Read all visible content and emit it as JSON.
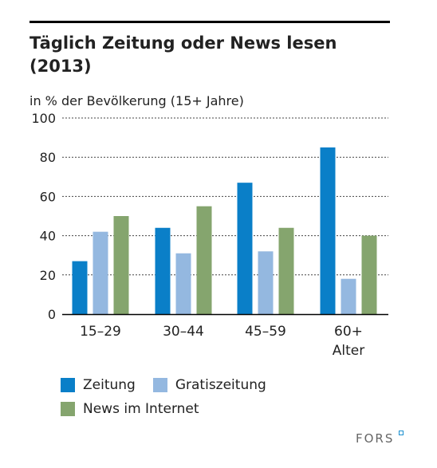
{
  "title": "Täglich Zeitung oder News lesen (2013)",
  "subtitle": "in % der Bevölkerung (15+ Jahre)",
  "logo_text": "FORS",
  "colors": {
    "Zeitung": "#0a7fc8",
    "Gratiszeitung": "#94b8e0",
    "News im Internet": "#85a56e",
    "grid": "#444444",
    "axis": "#000000"
  },
  "chart_data": {
    "type": "bar",
    "title": "Täglich Zeitung oder News lesen (2013)",
    "subtitle": "in % der Bevölkerung (15+ Jahre)",
    "categories": [
      "15–29",
      "30–44",
      "45–59",
      "60+\nAlter"
    ],
    "yticks": [
      "0",
      "20",
      "40",
      "60",
      "80",
      "100"
    ],
    "ylim": [
      0,
      100
    ],
    "grid": true,
    "legend_position": "bottom-left",
    "series": [
      {
        "name": "Zeitung",
        "values": [
          27,
          44,
          67,
          85
        ]
      },
      {
        "name": "Gratiszeitung",
        "values": [
          42,
          31,
          32,
          18
        ]
      },
      {
        "name": "News im Internet",
        "values": [
          50,
          55,
          44,
          40
        ]
      }
    ]
  }
}
